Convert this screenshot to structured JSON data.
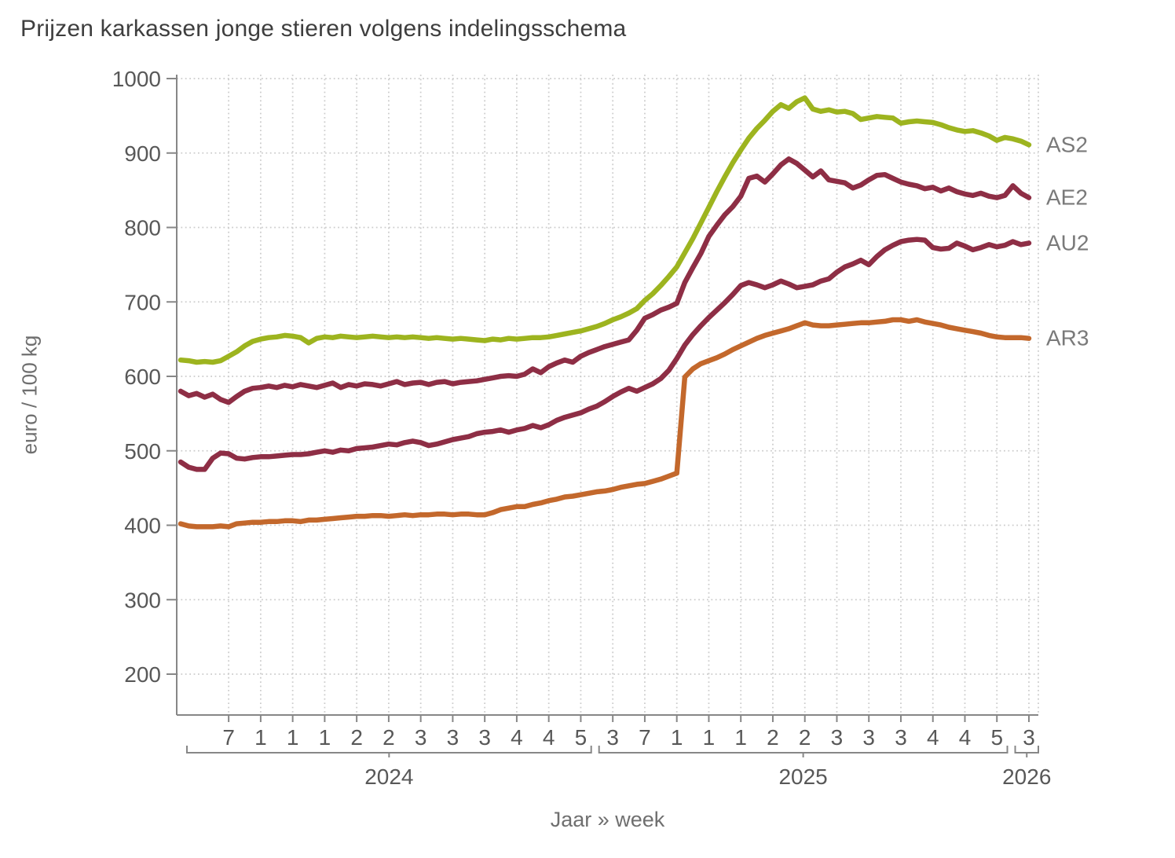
{
  "title": "Prijzen karkassen jonge stieren volgens indelingsschema",
  "y_axis": {
    "label": "euro / 100 kg",
    "ticks": [
      200,
      300,
      400,
      500,
      600,
      700,
      800,
      900,
      1000
    ]
  },
  "x_axis": {
    "label": "Jaar » week",
    "year_groups": [
      {
        "label": "2024",
        "start_index": 0,
        "end_index": 51,
        "ticks": [
          {
            "index": 6,
            "label": "7"
          },
          {
            "index": 10,
            "label": "1"
          },
          {
            "index": 14,
            "label": "1"
          },
          {
            "index": 18,
            "label": "1"
          },
          {
            "index": 22,
            "label": "2"
          },
          {
            "index": 26,
            "label": "2"
          },
          {
            "index": 30,
            "label": "3"
          },
          {
            "index": 34,
            "label": "3"
          },
          {
            "index": 38,
            "label": "3"
          },
          {
            "index": 42,
            "label": "4"
          },
          {
            "index": 46,
            "label": "4"
          },
          {
            "index": 50,
            "label": "5"
          }
        ]
      },
      {
        "label": "2025",
        "start_index": 52,
        "end_index": 103,
        "ticks": [
          {
            "index": 54,
            "label": "3"
          },
          {
            "index": 58,
            "label": "7"
          },
          {
            "index": 62,
            "label": "1"
          },
          {
            "index": 66,
            "label": "1"
          },
          {
            "index": 70,
            "label": "1"
          },
          {
            "index": 74,
            "label": "2"
          },
          {
            "index": 78,
            "label": "2"
          },
          {
            "index": 82,
            "label": "3"
          },
          {
            "index": 86,
            "label": "3"
          },
          {
            "index": 90,
            "label": "3"
          },
          {
            "index": 94,
            "label": "4"
          },
          {
            "index": 98,
            "label": "4"
          },
          {
            "index": 102,
            "label": "5"
          }
        ]
      },
      {
        "label": "2026",
        "start_index": 104,
        "end_index": 106,
        "ticks": [
          {
            "index": 106,
            "label": "3"
          }
        ]
      }
    ]
  },
  "chart_data": {
    "type": "line",
    "title": "Prijzen karkassen jonge stieren volgens indelingsschema",
    "xlabel": "Jaar » week",
    "ylabel": "euro / 100 kg",
    "ylim": [
      200,
      1000
    ],
    "grid": true,
    "legend_position": "right-of-line-ends",
    "x_unit": "week",
    "x_start": {
      "year": 2024,
      "week": 1
    },
    "x_end": {
      "year": 2026,
      "week": 3
    },
    "colors": {
      "grid": "#cdcdcd",
      "axis": "#878787",
      "tick_text": "#585858",
      "series_label": "#7a7a7a"
    },
    "series": [
      {
        "name": "AS2",
        "color": "#9db41f",
        "values": [
          622,
          621,
          619,
          620,
          619,
          621,
          627,
          633,
          641,
          647,
          650,
          652,
          653,
          655,
          654,
          652,
          645,
          651,
          653,
          652,
          654,
          653,
          652,
          653,
          654,
          653,
          652,
          653,
          652,
          653,
          652,
          651,
          652,
          651,
          650,
          651,
          650,
          649,
          648,
          650,
          649,
          651,
          650,
          651,
          652,
          652,
          653,
          655,
          657,
          659,
          661,
          664,
          667,
          671,
          676,
          680,
          685,
          691,
          702,
          711,
          722,
          734,
          747,
          766,
          785,
          806,
          827,
          848,
          868,
          887,
          904,
          920,
          933,
          944,
          956,
          965,
          960,
          969,
          974,
          959,
          956,
          958,
          955,
          956,
          953,
          945,
          947,
          949,
          948,
          947,
          940,
          942,
          943,
          942,
          941,
          938,
          934,
          931,
          929,
          930,
          927,
          923,
          917,
          921,
          919,
          916,
          911
        ]
      },
      {
        "name": "AE2",
        "color": "#8e2e45",
        "values": [
          580,
          574,
          577,
          572,
          576,
          569,
          565,
          573,
          580,
          584,
          585,
          587,
          585,
          588,
          586,
          589,
          587,
          585,
          588,
          591,
          585,
          589,
          587,
          590,
          589,
          587,
          590,
          593,
          589,
          591,
          592,
          589,
          592,
          593,
          590,
          592,
          593,
          594,
          596,
          598,
          600,
          601,
          600,
          603,
          610,
          605,
          613,
          618,
          622,
          619,
          627,
          632,
          636,
          640,
          643,
          646,
          649,
          662,
          678,
          683,
          689,
          693,
          698,
          726,
          746,
          765,
          788,
          803,
          817,
          828,
          842,
          866,
          869,
          861,
          872,
          884,
          892,
          886,
          877,
          868,
          876,
          864,
          862,
          860,
          853,
          857,
          864,
          870,
          871,
          866,
          861,
          858,
          856,
          852,
          854,
          849,
          853,
          848,
          845,
          843,
          846,
          842,
          840,
          843,
          856,
          846,
          840
        ]
      },
      {
        "name": "AU2",
        "color": "#8e2e45",
        "values": [
          485,
          478,
          475,
          475,
          490,
          497,
          496,
          490,
          489,
          491,
          492,
          492,
          493,
          494,
          495,
          495,
          496,
          498,
          500,
          498,
          501,
          500,
          503,
          504,
          505,
          507,
          509,
          508,
          511,
          513,
          511,
          507,
          509,
          512,
          515,
          517,
          519,
          523,
          525,
          526,
          528,
          525,
          528,
          530,
          534,
          531,
          535,
          541,
          545,
          548,
          551,
          556,
          560,
          566,
          573,
          579,
          584,
          580,
          585,
          590,
          597,
          608,
          624,
          642,
          656,
          668,
          679,
          689,
          699,
          710,
          722,
          726,
          723,
          719,
          723,
          728,
          724,
          719,
          721,
          723,
          728,
          731,
          740,
          747,
          751,
          756,
          750,
          761,
          770,
          776,
          781,
          783,
          784,
          783,
          773,
          771,
          772,
          779,
          775,
          770,
          773,
          777,
          774,
          776,
          781,
          777,
          779
        ]
      },
      {
        "name": "AR3",
        "color": "#c3682c",
        "values": [
          402,
          399,
          398,
          398,
          398,
          399,
          398,
          402,
          403,
          404,
          404,
          405,
          405,
          406,
          406,
          405,
          407,
          407,
          408,
          409,
          410,
          411,
          412,
          412,
          413,
          413,
          412,
          413,
          414,
          413,
          414,
          414,
          415,
          415,
          414,
          415,
          415,
          414,
          414,
          417,
          421,
          423,
          425,
          425,
          428,
          430,
          433,
          435,
          438,
          439,
          441,
          443,
          445,
          446,
          448,
          451,
          453,
          455,
          456,
          459,
          462,
          466,
          470,
          599,
          610,
          617,
          621,
          625,
          630,
          636,
          641,
          646,
          651,
          655,
          658,
          661,
          664,
          668,
          672,
          669,
          668,
          668,
          669,
          670,
          671,
          672,
          672,
          673,
          674,
          676,
          676,
          674,
          676,
          673,
          671,
          669,
          666,
          664,
          662,
          660,
          658,
          655,
          653,
          652,
          652,
          652,
          651
        ]
      }
    ]
  }
}
